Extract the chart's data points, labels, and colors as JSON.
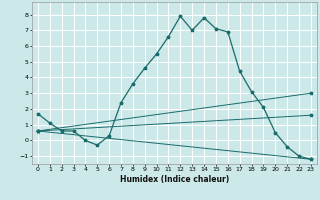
{
  "title": "",
  "xlabel": "Humidex (Indice chaleur)",
  "xlim": [
    -0.5,
    23.5
  ],
  "ylim": [
    -1.5,
    8.8
  ],
  "yticks": [
    -1,
    0,
    1,
    2,
    3,
    4,
    5,
    6,
    7,
    8
  ],
  "xticks": [
    0,
    1,
    2,
    3,
    4,
    5,
    6,
    7,
    8,
    9,
    10,
    11,
    12,
    13,
    14,
    15,
    16,
    17,
    18,
    19,
    20,
    21,
    22,
    23
  ],
  "background_color": "#cce8e8",
  "grid_color": "#ffffff",
  "line_color": "#1a6b6b",
  "line1_x": [
    0,
    1,
    2,
    3,
    4,
    5,
    6,
    7,
    8,
    9,
    10,
    11,
    12,
    13,
    14,
    15,
    16,
    17,
    18,
    19,
    20,
    21,
    22,
    23
  ],
  "line1_y": [
    1.7,
    1.1,
    0.6,
    0.6,
    0.0,
    -0.3,
    0.3,
    2.4,
    3.6,
    4.6,
    5.5,
    6.6,
    7.9,
    7.0,
    7.8,
    7.1,
    6.9,
    4.4,
    3.1,
    2.1,
    0.5,
    -0.4,
    -1.0,
    -1.2
  ],
  "line2_x": [
    0,
    23
  ],
  "line2_y": [
    0.6,
    1.6
  ],
  "line3_x": [
    0,
    23
  ],
  "line3_y": [
    0.6,
    3.0
  ],
  "line4_x": [
    0,
    23
  ],
  "line4_y": [
    0.6,
    -1.2
  ],
  "figwidth": 3.2,
  "figheight": 2.0,
  "dpi": 100
}
